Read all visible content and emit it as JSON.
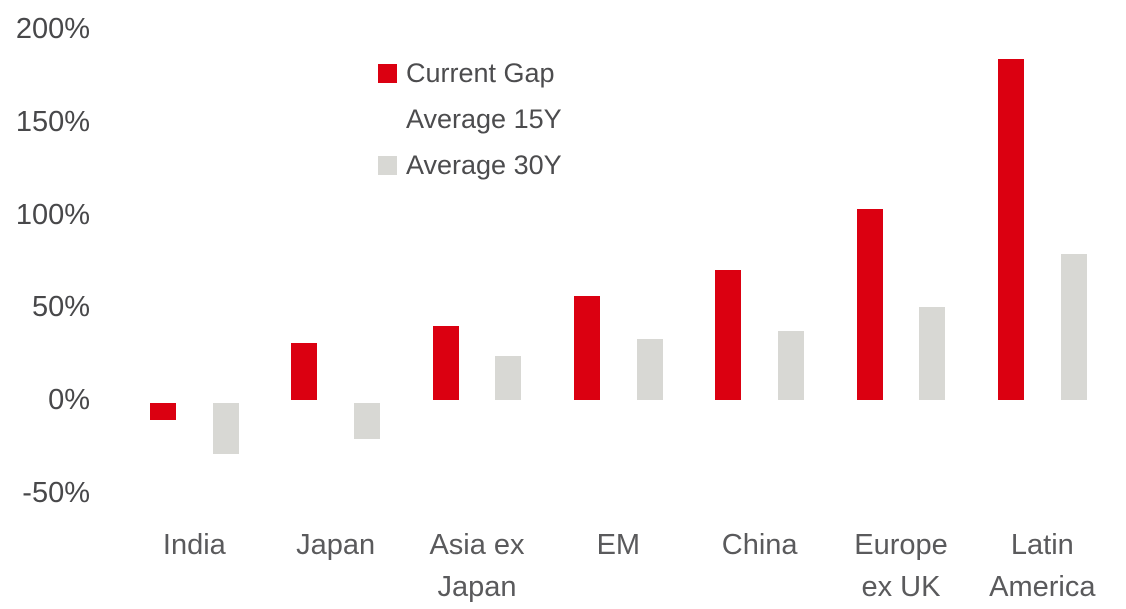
{
  "colors": {
    "background": "#ffffff",
    "current_gap_red": "#db0011",
    "average_15y_white": "#ffffff",
    "average_30y_gray": "#d8d8d4",
    "axis_text": "#48484a",
    "category_text": "#5a5a5c",
    "legend_text": "#4c4c4e"
  },
  "legend": {
    "items": [
      {
        "label": "Current Gap",
        "swatch": "#db0011"
      },
      {
        "label": "Average 15Y",
        "swatch": "#ffffff"
      },
      {
        "label": "Average 30Y",
        "swatch": "#d8d8d4"
      }
    ]
  },
  "chart_data": {
    "type": "bar",
    "title": "",
    "xlabel": "",
    "ylabel": "",
    "categories": [
      "India",
      "Japan",
      "Asia ex Japan",
      "EM",
      "China",
      "Europe ex UK",
      "Latin America"
    ],
    "category_display_lines": [
      [
        "India"
      ],
      [
        "Japan"
      ],
      [
        "Asia ex",
        "Japan"
      ],
      [
        "EM"
      ],
      [
        "China"
      ],
      [
        "Europe",
        "ex UK"
      ],
      [
        "Latin",
        "America"
      ]
    ],
    "series": [
      {
        "name": "Current Gap",
        "color": "#db0011",
        "visible": true,
        "values": [
          -11,
          31,
          40,
          56,
          70,
          103,
          184
        ]
      },
      {
        "name": "Average 15Y",
        "color": "#ffffff",
        "visible": false,
        "values": []
      },
      {
        "name": "Average 30Y",
        "color": "#d8d8d4",
        "visible": true,
        "values": [
          -29,
          -21,
          24,
          33,
          37,
          50,
          79
        ]
      }
    ],
    "y_ticks": [
      {
        "value": 200,
        "label": "200%"
      },
      {
        "value": 150,
        "label": "150%"
      },
      {
        "value": 100,
        "label": "100%"
      },
      {
        "value": 50,
        "label": "50%"
      },
      {
        "value": 0,
        "label": "0%"
      },
      {
        "value": -50,
        "label": "-50%"
      }
    ],
    "ylim": [
      -50,
      200
    ],
    "grid": false,
    "axis_lines": false,
    "legend_position": "top-center-left"
  }
}
